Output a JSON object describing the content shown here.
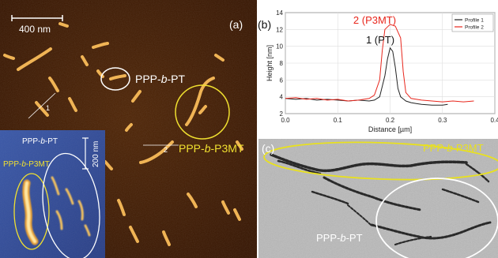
{
  "panel_a": {
    "label": "(a)",
    "scale_bar": "400 nm",
    "profile_markers": [
      "1",
      "2"
    ],
    "annotations": {
      "pt": [
        "PPP-",
        "b",
        "-PT"
      ],
      "p3mt": [
        "PPP-",
        "b",
        "-P3MT"
      ]
    },
    "colors": {
      "pt_circle": "#ffffff",
      "p3mt_circle": "#f0e030",
      "background": "#3d1a00"
    },
    "inset": {
      "label_pt": [
        "PPP-",
        "b",
        "-PT"
      ],
      "label_p3mt": [
        "PPP-",
        "b",
        "-P3MT"
      ],
      "scale_bar": "200 nm"
    }
  },
  "panel_b": {
    "label": "(b)",
    "annotations": {
      "p3mt": "2 (P3MT)",
      "pt": "1 (PT)"
    },
    "chart_data": {
      "type": "line",
      "xlabel": "Distance [µm]",
      "ylabel": "Height [nm]",
      "xlim": [
        0.0,
        0.4
      ],
      "ylim": [
        2,
        14
      ],
      "xticks": [
        "0.0",
        "0.1",
        "0.2",
        "0.3",
        "0.4"
      ],
      "yticks": [
        "2",
        "4",
        "6",
        "8",
        "10",
        "12",
        "14"
      ],
      "grid": true,
      "legend_position": "top-right",
      "series": [
        {
          "name": "Profile 1",
          "color": "#222222",
          "x": [
            0.0,
            0.02,
            0.04,
            0.06,
            0.08,
            0.1,
            0.12,
            0.14,
            0.16,
            0.17,
            0.18,
            0.19,
            0.195,
            0.2,
            0.205,
            0.21,
            0.215,
            0.22,
            0.23,
            0.24,
            0.25,
            0.26,
            0.28,
            0.3,
            0.31
          ],
          "y": [
            3.8,
            3.7,
            3.8,
            3.6,
            3.7,
            3.6,
            3.5,
            3.6,
            3.5,
            3.6,
            4.0,
            6.5,
            8.5,
            9.8,
            9.4,
            7.5,
            5.0,
            4.0,
            3.5,
            3.3,
            3.2,
            3.1,
            3.0,
            3.0,
            3.1
          ]
        },
        {
          "name": "Profile 2",
          "color": "#e8261c",
          "x": [
            0.0,
            0.02,
            0.04,
            0.06,
            0.08,
            0.1,
            0.12,
            0.14,
            0.16,
            0.17,
            0.18,
            0.185,
            0.19,
            0.2,
            0.21,
            0.22,
            0.225,
            0.23,
            0.24,
            0.26,
            0.28,
            0.3,
            0.32,
            0.34,
            0.36
          ],
          "y": [
            3.8,
            3.9,
            3.7,
            3.8,
            3.6,
            3.7,
            3.5,
            3.6,
            3.8,
            4.2,
            6.0,
            9.5,
            12.0,
            12.6,
            12.4,
            11.0,
            7.0,
            4.5,
            3.8,
            3.6,
            3.5,
            3.4,
            3.5,
            3.4,
            3.5
          ]
        }
      ]
    }
  },
  "panel_c": {
    "label": "(c)",
    "annotations": {
      "p3mt": [
        "PPP-",
        "b",
        "-P3MT"
      ],
      "pt": [
        "PPP-",
        "b",
        "-PT"
      ]
    },
    "colors": {
      "p3mt_ellipse": "#e8e020",
      "pt_ellipse": "#ffffff",
      "background": "#b9b9b9"
    }
  }
}
